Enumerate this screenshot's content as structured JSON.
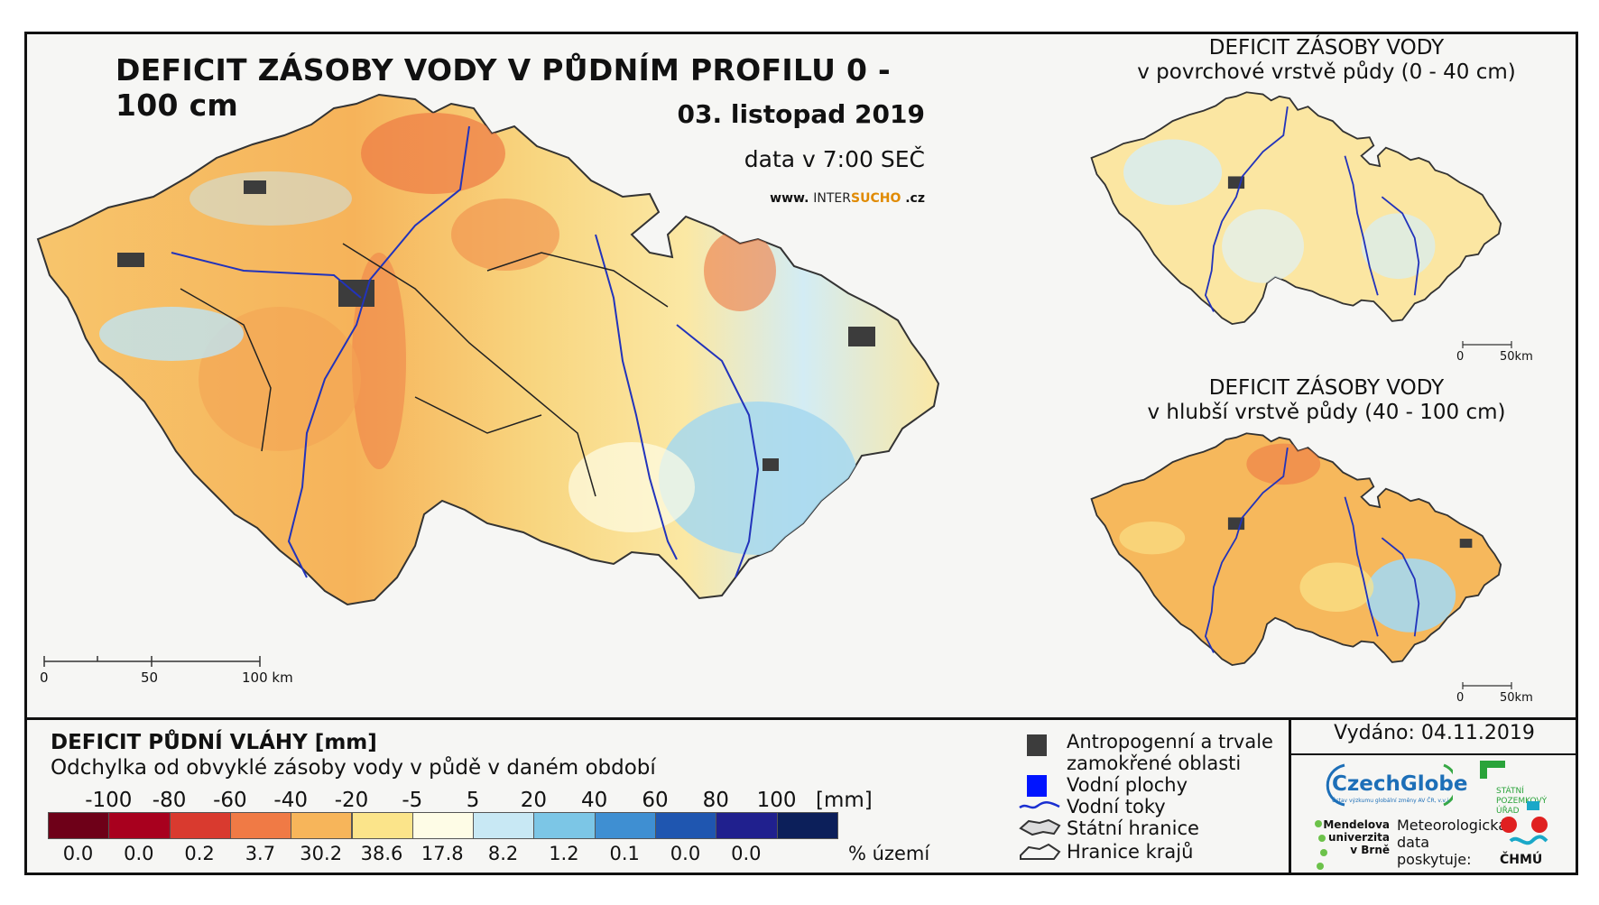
{
  "title": "DEFICIT ZÁSOBY VODY V PŮDNÍM PROFILU 0 - 100 cm",
  "date": "03. listopad 2019",
  "data_time": "data v 7:00 SEČ",
  "website": {
    "prefix": "www.",
    "inter": "INTER",
    "sucho": "SUCHO",
    "suffix": ".cz"
  },
  "inset_top": {
    "line1": "DEFICIT ZÁSOBY VODY",
    "line2": "v povrchové vrstvě půdy (0 - 40 cm)"
  },
  "inset_bottom": {
    "line1": "DEFICIT ZÁSOBY VODY",
    "line2": "v hlubší vrstvě půdy (40 - 100 cm)"
  },
  "scale_main": [
    "0",
    "50",
    "100 km"
  ],
  "scale_inset": [
    "0",
    "50km"
  ],
  "legend": {
    "title": "DEFICIT PŮDNÍ VLÁHY [mm]",
    "subtitle": "Odchylka od obvyklé zásoby vody v půdě v daném období",
    "ticks": [
      "-100",
      "-80",
      "-60",
      "-40",
      "-20",
      "-5",
      "5",
      "20",
      "40",
      "60",
      "80",
      "100"
    ],
    "unit": "[mm]",
    "colors": [
      "#6e0018",
      "#a8001e",
      "#d93a2f",
      "#f07a45",
      "#f7b55a",
      "#fbe48a",
      "#fefce6",
      "#c8e8f4",
      "#7cc6e6",
      "#3f8fd2",
      "#1f56b0",
      "#20208e",
      "#0c1f5a"
    ],
    "percent": [
      "0.0",
      "0.0",
      "0.2",
      "3.7",
      "30.2",
      "38.6",
      "17.8",
      "8.2",
      "1.2",
      "0.1",
      "0.0",
      "0.0"
    ],
    "percent_label": "% území"
  },
  "symbols": {
    "anthropogenic": "Antropogenní a trvale zamokřené oblasti",
    "water_areas": "Vodní plochy",
    "streams": "Vodní toky",
    "state_border": "Státní hranice",
    "region_border": "Hranice krajů"
  },
  "issued": "Vydáno: 04.11.2019",
  "providers": {
    "czechglobe": "CzechGlobe",
    "czechglobe_sub": "Ústav výzkumu globální změny AV ČR, v.v.i.",
    "mendel": [
      "Mendelova",
      "univerzita",
      "v Brně"
    ],
    "meteo": [
      "Meteorologická",
      "data",
      "poskytuje:"
    ],
    "spu": [
      "STÁTNÍ",
      "POZEMKOVÝ",
      "ÚŘAD"
    ],
    "chmu": "ČHMÚ"
  }
}
